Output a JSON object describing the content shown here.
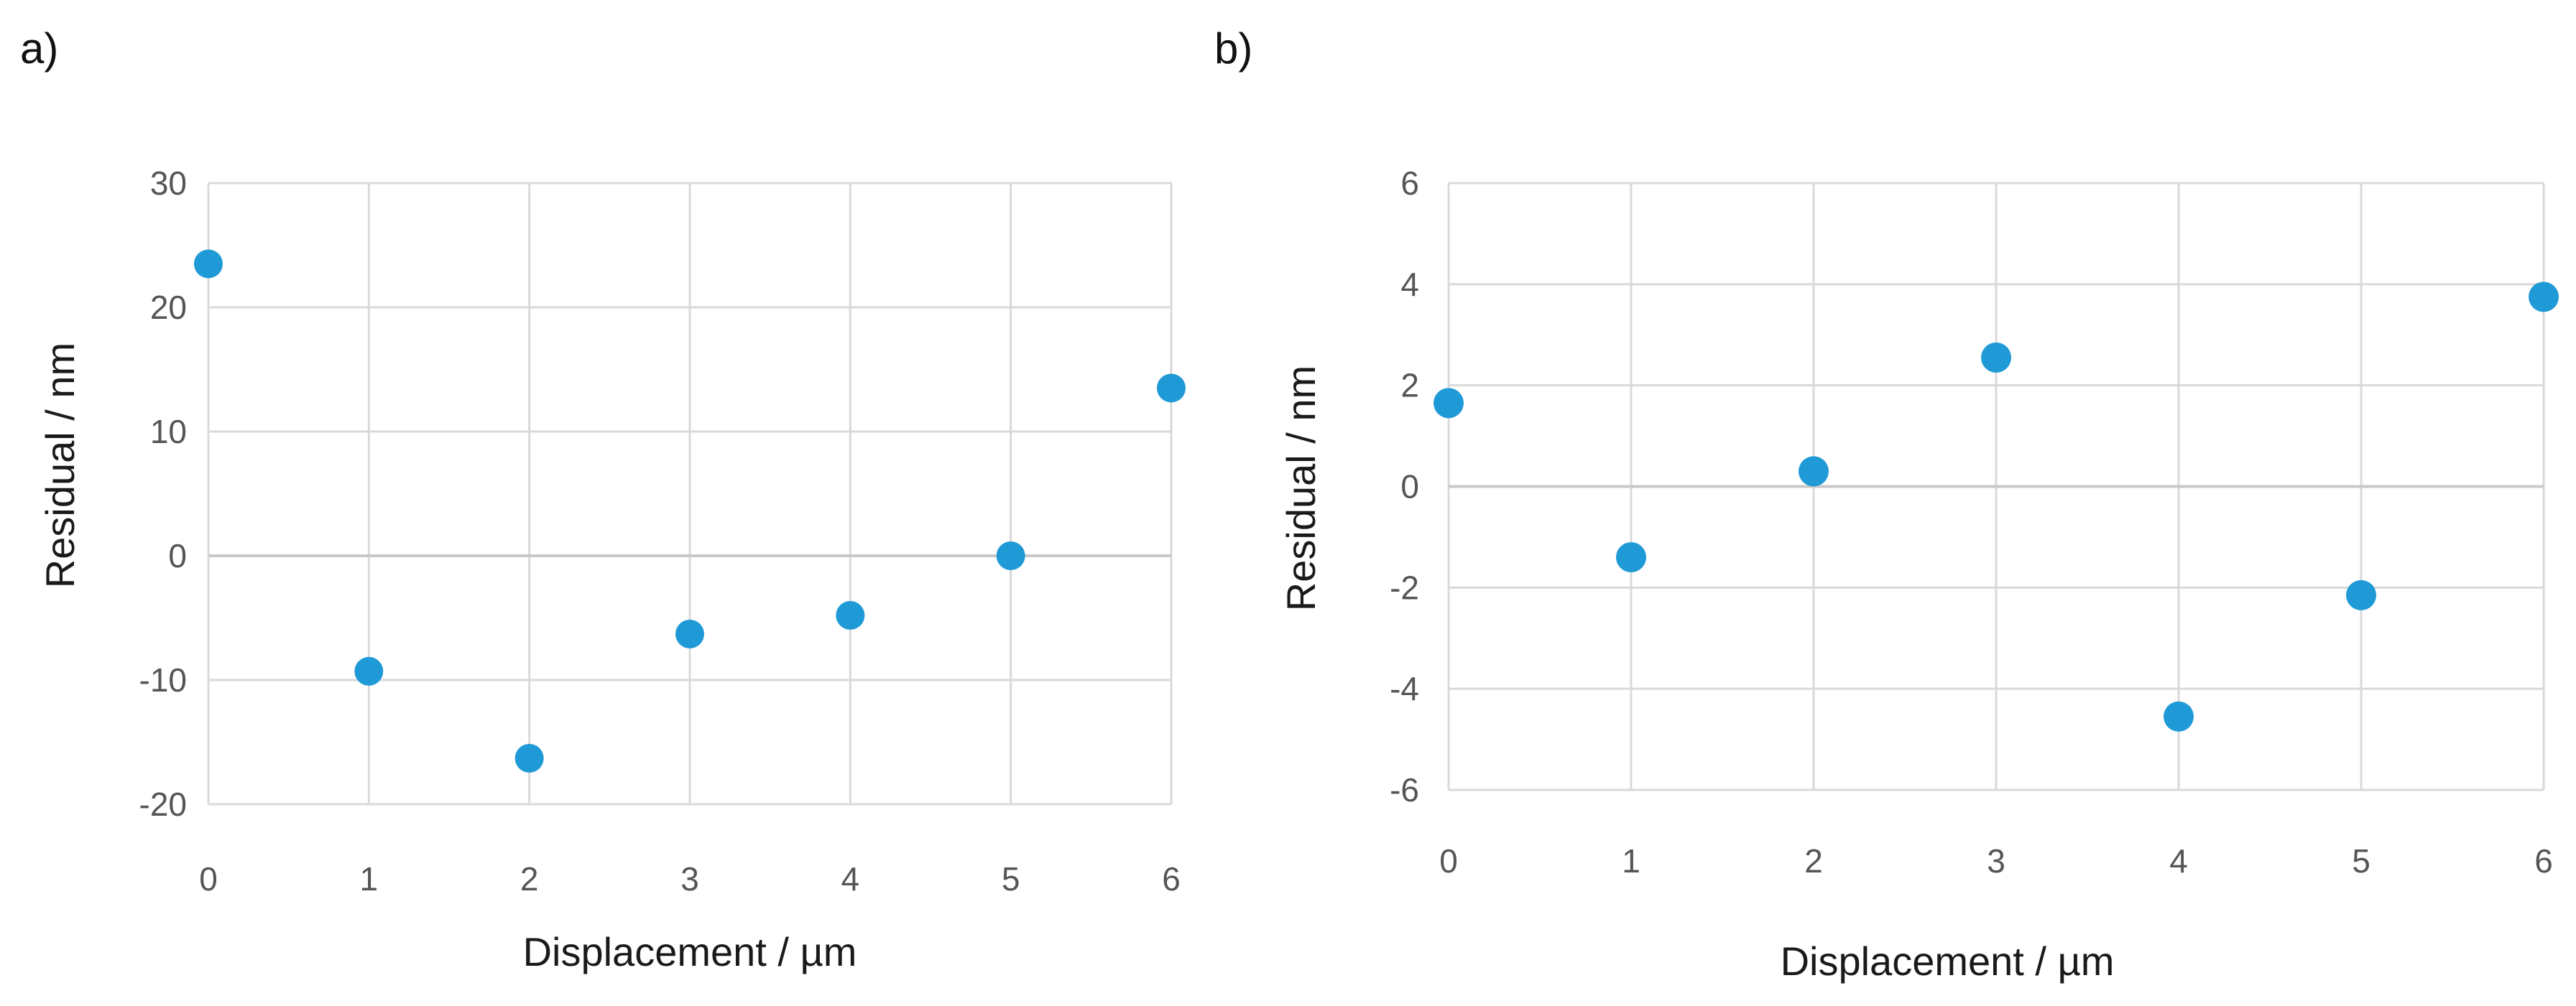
{
  "chart_data": [
    {
      "panel_label": "a)",
      "type": "scatter",
      "xlabel": "Displacement / µm",
      "ylabel": "Residual / nm",
      "xlim": [
        0,
        6
      ],
      "ylim": [
        -20,
        30
      ],
      "xticks": [
        0,
        1,
        2,
        3,
        4,
        5,
        6
      ],
      "yticks": [
        30,
        20,
        10,
        0,
        -10,
        -20
      ],
      "grid": true,
      "marker_color": "#1f9ad6",
      "series": [
        {
          "x": [
            0,
            1,
            2,
            3,
            4,
            5,
            6
          ],
          "y": [
            23.5,
            -9.3,
            -16.3,
            -6.3,
            -4.8,
            0,
            13.5
          ]
        }
      ]
    },
    {
      "panel_label": "b)",
      "type": "scatter",
      "xlabel": "Displacement / µm",
      "ylabel": "Residual / nm",
      "xlim": [
        0,
        6
      ],
      "ylim": [
        -6,
        6
      ],
      "xticks": [
        0,
        1,
        2,
        3,
        4,
        5,
        6
      ],
      "yticks": [
        6,
        4,
        2,
        0,
        -2,
        -4,
        -6
      ],
      "grid": true,
      "marker_color": "#1f9ad6",
      "series": [
        {
          "x": [
            0,
            1,
            2,
            3,
            4,
            5,
            6
          ],
          "y": [
            1.65,
            -1.4,
            0.3,
            2.55,
            -4.55,
            -2.15,
            3.75
          ]
        }
      ]
    }
  ]
}
